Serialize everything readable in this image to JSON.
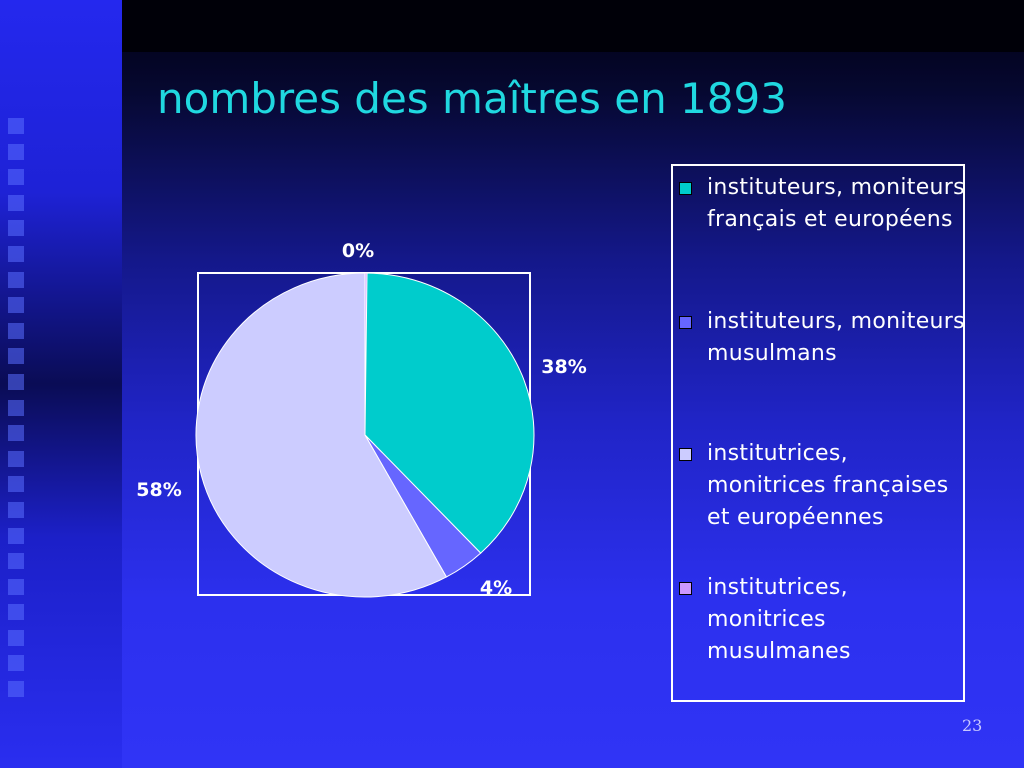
{
  "slide": {
    "title": "nombres des maîtres en 1893",
    "page_number": "23"
  },
  "colors": {
    "title": "#20d8e0",
    "background_top": "#000010",
    "background_bottom": "#3034f6"
  },
  "chart_data": {
    "type": "pie",
    "title": "",
    "legend_position": "right",
    "categories": [
      "instituteurs, moniteurs français et européens",
      "instituteurs, moniteurs musulmans",
      "institutrices, monitrices françaises et européennes",
      "institutrices, monitrices musulmanes"
    ],
    "values": [
      38,
      4,
      58,
      0
    ],
    "labels": [
      "38%",
      "4%",
      "58%",
      "0%"
    ],
    "colors": [
      "#00cccc",
      "#6666ff",
      "#ccccff",
      "#cc99ff"
    ]
  }
}
